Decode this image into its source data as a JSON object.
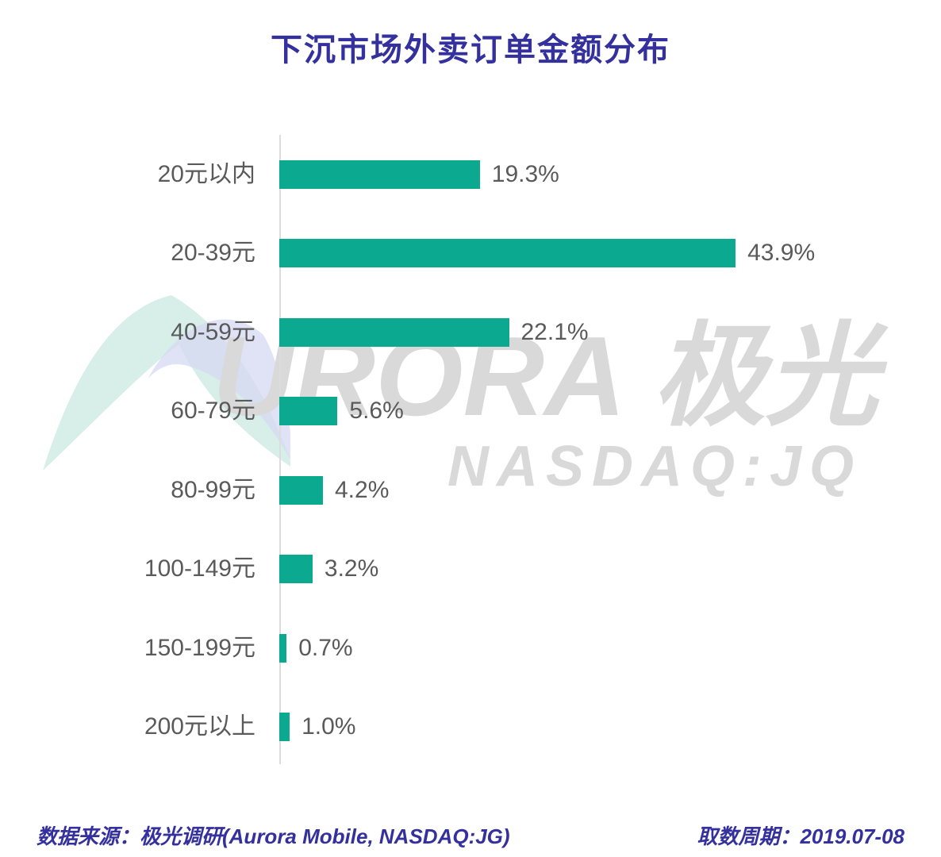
{
  "title": "下沉市场外卖订单金额分布",
  "watermark": {
    "brand_text": "URORA 极光",
    "ticker_text": "NASDAQ:JQ",
    "logo_icon": "aurora-swoosh-logo"
  },
  "footer": {
    "source": "数据来源：极光调研(Aurora Mobile, NASDAQ:JG)",
    "period": "取数周期：2019.07-08"
  },
  "colors": {
    "bar": "#0ca991",
    "title": "#34309e",
    "label": "#5a5a5a",
    "watermark": "#d9d9d9",
    "axis": "#dcdcdc",
    "logo_teal": "#cdeae4",
    "logo_purple": "#d6d8f1"
  },
  "chart_data": {
    "type": "bar",
    "orientation": "horizontal",
    "title": "下沉市场外卖订单金额分布",
    "xlabel": "",
    "ylabel": "",
    "categories": [
      "20元以内",
      "20-39元",
      "40-59元",
      "60-79元",
      "80-99元",
      "100-149元",
      "150-199元",
      "200元以上"
    ],
    "values": [
      19.3,
      43.9,
      22.1,
      5.6,
      4.2,
      3.2,
      0.7,
      1.0
    ],
    "value_labels": [
      "19.3%",
      "43.9%",
      "22.1%",
      "5.6%",
      "4.2%",
      "3.2%",
      "0.7%",
      "1.0%"
    ],
    "unit": "%",
    "xlim": [
      0,
      45
    ],
    "grid": false,
    "legend": "none",
    "data_label_position": "right-of-bar"
  }
}
